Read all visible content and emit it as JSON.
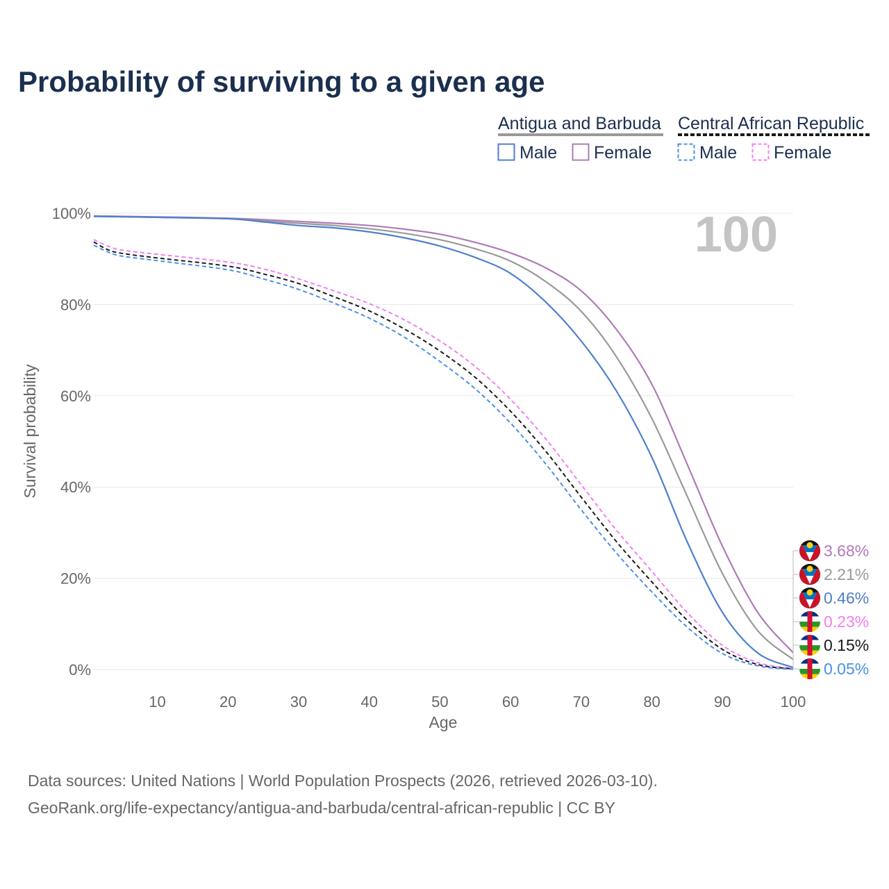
{
  "chart_data": {
    "type": "line",
    "title": "Probability of surviving to a given age",
    "xlabel": "Age",
    "ylabel": "Survival probability",
    "xlim": [
      1,
      100
    ],
    "ylim": [
      0,
      100
    ],
    "x_ticks": [
      10,
      20,
      30,
      40,
      50,
      60,
      70,
      80,
      90,
      100
    ],
    "y_ticks": [
      0,
      20,
      40,
      60,
      80,
      100
    ],
    "y_tick_labels": [
      "0%",
      "20%",
      "40%",
      "60%",
      "80%",
      "100%"
    ],
    "age_marker": "100",
    "legend": {
      "groups": [
        {
          "country": "Antigua and Barbuda",
          "line_style": "solid",
          "male": "Male",
          "female": "Female"
        },
        {
          "country": "Central African Republic",
          "line_style": "dashed",
          "male": "Male",
          "female": "Female"
        }
      ]
    },
    "series": [
      {
        "name": "Antigua and Barbuda - Female",
        "color": "#b07ab8",
        "dash": false,
        "points": [
          [
            1,
            99.4
          ],
          [
            10,
            99.2
          ],
          [
            20,
            98.9
          ],
          [
            25,
            98.6
          ],
          [
            30,
            98.2
          ],
          [
            35,
            97.8
          ],
          [
            40,
            97.3
          ],
          [
            45,
            96.5
          ],
          [
            50,
            95.4
          ],
          [
            55,
            93.6
          ],
          [
            60,
            91.3
          ],
          [
            65,
            88.0
          ],
          [
            70,
            83.0
          ],
          [
            75,
            74.5
          ],
          [
            80,
            62.5
          ],
          [
            85,
            45.0
          ],
          [
            90,
            27.0
          ],
          [
            95,
            12.5
          ],
          [
            100,
            3.68
          ]
        ],
        "end_label": "3.68%"
      },
      {
        "name": "Antigua and Barbuda - Total",
        "color": "#999999",
        "dash": false,
        "points": [
          [
            1,
            99.4
          ],
          [
            10,
            99.1
          ],
          [
            20,
            98.8
          ],
          [
            25,
            98.3
          ],
          [
            30,
            97.8
          ],
          [
            35,
            97.3
          ],
          [
            40,
            96.6
          ],
          [
            45,
            95.6
          ],
          [
            50,
            94.2
          ],
          [
            55,
            92.2
          ],
          [
            60,
            89.5
          ],
          [
            65,
            85.0
          ],
          [
            70,
            78.5
          ],
          [
            75,
            68.5
          ],
          [
            80,
            55.0
          ],
          [
            85,
            38.0
          ],
          [
            90,
            21.0
          ],
          [
            95,
            8.5
          ],
          [
            100,
            2.21
          ]
        ],
        "end_label": "2.21%"
      },
      {
        "name": "Antigua and Barbuda - Male",
        "color": "#4f7fcc",
        "dash": false,
        "points": [
          [
            1,
            99.3
          ],
          [
            10,
            99.1
          ],
          [
            20,
            98.8
          ],
          [
            25,
            98.1
          ],
          [
            30,
            97.3
          ],
          [
            35,
            96.8
          ],
          [
            40,
            95.9
          ],
          [
            45,
            94.6
          ],
          [
            50,
            92.8
          ],
          [
            55,
            90.3
          ],
          [
            60,
            86.8
          ],
          [
            65,
            80.5
          ],
          [
            70,
            72.0
          ],
          [
            75,
            61.0
          ],
          [
            80,
            46.5
          ],
          [
            85,
            28.0
          ],
          [
            90,
            12.5
          ],
          [
            95,
            3.6
          ],
          [
            100,
            0.46
          ]
        ],
        "end_label": "0.46%"
      },
      {
        "name": "Central African Republic - Female",
        "color": "#f27ef0",
        "dash": true,
        "points": [
          [
            1,
            94.2
          ],
          [
            3,
            92.8
          ],
          [
            5,
            91.9
          ],
          [
            10,
            91.0
          ],
          [
            20,
            89.3
          ],
          [
            25,
            87.8
          ],
          [
            30,
            85.6
          ],
          [
            35,
            83.0
          ],
          [
            40,
            80.2
          ],
          [
            45,
            76.6
          ],
          [
            50,
            72.0
          ],
          [
            55,
            66.4
          ],
          [
            60,
            59.2
          ],
          [
            65,
            50.5
          ],
          [
            70,
            40.5
          ],
          [
            75,
            30.5
          ],
          [
            80,
            21.5
          ],
          [
            85,
            12.5
          ],
          [
            90,
            5.3
          ],
          [
            95,
            1.5
          ],
          [
            100,
            0.23
          ]
        ],
        "end_label": "0.23%"
      },
      {
        "name": "Central African Republic - Total",
        "color": "#1a1a1a",
        "dash": true,
        "points": [
          [
            1,
            93.7
          ],
          [
            3,
            92.0
          ],
          [
            5,
            91.2
          ],
          [
            10,
            90.2
          ],
          [
            20,
            88.4
          ],
          [
            25,
            86.7
          ],
          [
            30,
            84.6
          ],
          [
            35,
            81.7
          ],
          [
            40,
            78.6
          ],
          [
            45,
            74.6
          ],
          [
            50,
            69.8
          ],
          [
            55,
            64.0
          ],
          [
            60,
            56.6
          ],
          [
            65,
            47.8
          ],
          [
            70,
            37.8
          ],
          [
            75,
            28.0
          ],
          [
            80,
            19.2
          ],
          [
            85,
            10.8
          ],
          [
            90,
            4.4
          ],
          [
            95,
            1.1
          ],
          [
            100,
            0.15
          ]
        ],
        "end_label": "0.15%"
      },
      {
        "name": "Central African Republic - Male",
        "color": "#4a8fe6",
        "dash": true,
        "points": [
          [
            1,
            93.0
          ],
          [
            3,
            91.5
          ],
          [
            5,
            90.6
          ],
          [
            10,
            89.6
          ],
          [
            20,
            87.6
          ],
          [
            25,
            85.6
          ],
          [
            30,
            83.3
          ],
          [
            35,
            80.3
          ],
          [
            40,
            77.0
          ],
          [
            45,
            72.8
          ],
          [
            50,
            67.5
          ],
          [
            55,
            61.5
          ],
          [
            60,
            54.0
          ],
          [
            65,
            45.0
          ],
          [
            70,
            35.0
          ],
          [
            75,
            25.5
          ],
          [
            80,
            17.0
          ],
          [
            85,
            9.3
          ],
          [
            90,
            3.5
          ],
          [
            95,
            0.8
          ],
          [
            100,
            0.05
          ]
        ],
        "end_label": "0.05%"
      }
    ],
    "end_markers": [
      {
        "flag": "antigua-and-barbuda",
        "label": "3.68%",
        "color": "#b07ab8",
        "value": 3.68
      },
      {
        "flag": "antigua-and-barbuda",
        "label": "2.21%",
        "color": "#999999",
        "value": 2.21
      },
      {
        "flag": "antigua-and-barbuda",
        "label": "0.46%",
        "color": "#4f7fcc",
        "value": 0.46
      },
      {
        "flag": "central-african-republic",
        "label": "0.23%",
        "color": "#f27ef0",
        "value": 0.23
      },
      {
        "flag": "central-african-republic",
        "label": "0.15%",
        "color": "#1a1a1a",
        "value": 0.15
      },
      {
        "flag": "central-african-republic",
        "label": "0.05%",
        "color": "#4a8fe6",
        "value": 0.05
      }
    ]
  },
  "footer": {
    "line1": "Data sources: United Nations | World Population Prospects (2026, retrieved 2026-03-10).",
    "line2": "GeoRank.org/life-expectancy/antigua-and-barbuda/central-african-republic | CC BY"
  }
}
